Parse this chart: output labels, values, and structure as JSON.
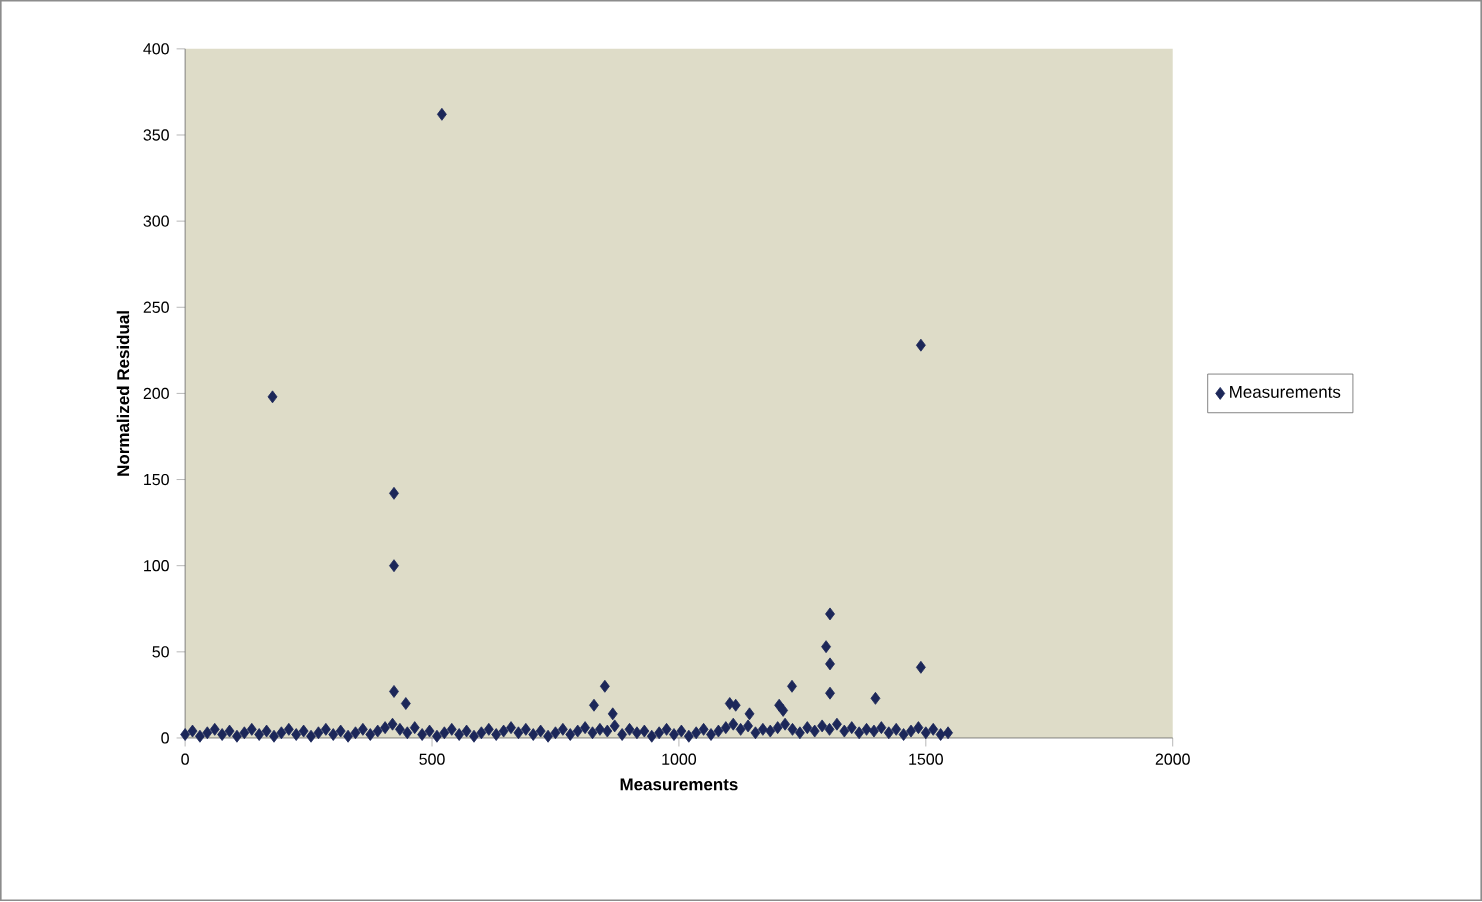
{
  "chart_data": {
    "type": "scatter",
    "xlabel": "Measurements",
    "ylabel": "Normalized Residual",
    "xlim": [
      0,
      2000
    ],
    "ylim": [
      0,
      400
    ],
    "xticks": [
      0,
      500,
      1000,
      1500,
      2000
    ],
    "yticks": [
      0,
      50,
      100,
      150,
      200,
      250,
      300,
      350,
      400
    ],
    "grid": false,
    "legend": "right",
    "marker": "diamond",
    "series": [
      {
        "name": "Measurements",
        "color": "#1c2759",
        "x": [
          0,
          15,
          30,
          45,
          60,
          75,
          90,
          105,
          120,
          135,
          150,
          165,
          180,
          195,
          210,
          225,
          240,
          255,
          270,
          285,
          300,
          315,
          330,
          345,
          360,
          375,
          390,
          405,
          420,
          435,
          450,
          465,
          480,
          495,
          510,
          525,
          540,
          555,
          570,
          585,
          600,
          615,
          630,
          645,
          660,
          675,
          690,
          705,
          720,
          735,
          750,
          765,
          780,
          795,
          810,
          825,
          840,
          855,
          870,
          885,
          900,
          915,
          930,
          945,
          960,
          975,
          990,
          1005,
          1020,
          1035,
          1050,
          1065,
          1080,
          1095,
          1110,
          1125,
          1140,
          1155,
          1170,
          1185,
          1200,
          1215,
          1230,
          1245,
          1260,
          1275,
          1290,
          1305,
          1320,
          1335,
          1350,
          1365,
          1380,
          1395,
          1410,
          1425,
          1440,
          1455,
          1470,
          1485,
          1500,
          1515,
          1530,
          1545,
          177,
          423,
          423,
          423,
          447,
          520,
          1490,
          1490,
          1306,
          1298,
          1306,
          1229,
          1306,
          1398,
          1103,
          1115,
          1143,
          1203,
          1211,
          866,
          850,
          828
        ],
        "values": [
          2,
          4,
          1,
          3,
          5,
          2,
          4,
          1,
          3,
          5,
          2,
          4,
          1,
          3,
          5,
          2,
          4,
          1,
          3,
          5,
          2,
          4,
          1,
          3,
          5,
          2,
          4,
          6,
          8,
          5,
          3,
          6,
          2,
          4,
          1,
          3,
          5,
          2,
          4,
          1,
          3,
          5,
          2,
          4,
          6,
          3,
          5,
          2,
          4,
          1,
          3,
          5,
          2,
          4,
          6,
          3,
          5,
          4,
          7,
          2,
          5,
          3,
          4,
          1,
          3,
          5,
          2,
          4,
          1,
          3,
          5,
          2,
          4,
          6,
          8,
          5,
          7,
          3,
          5,
          4,
          6,
          8,
          5,
          3,
          6,
          4,
          7,
          5,
          8,
          4,
          6,
          3,
          5,
          4,
          6,
          3,
          5,
          2,
          4,
          6,
          3,
          5,
          2,
          3,
          198,
          142,
          100,
          27,
          20,
          362,
          228,
          41,
          72,
          53,
          43,
          30,
          26,
          23,
          20,
          19,
          14,
          19,
          16,
          14,
          30,
          19
        ]
      }
    ]
  }
}
